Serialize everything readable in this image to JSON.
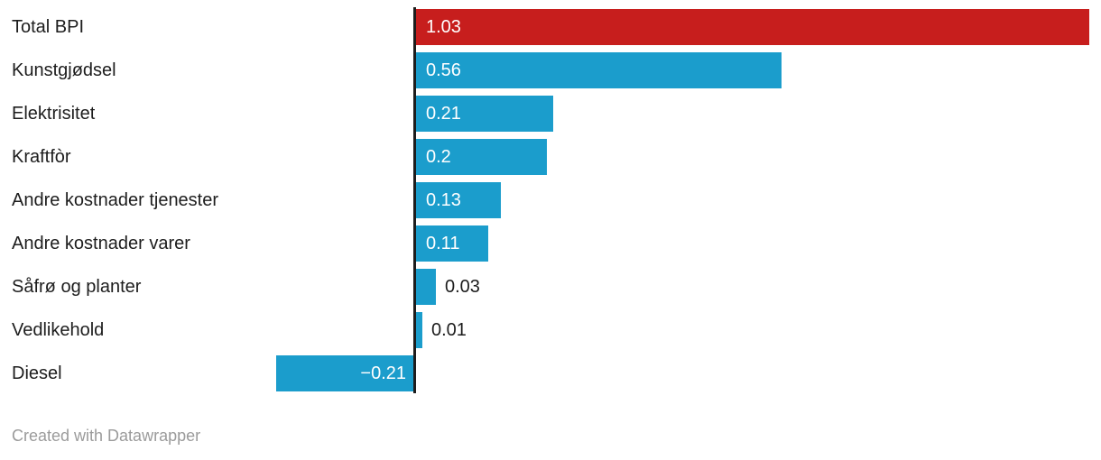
{
  "footer": {
    "credit": "Created with Datawrapper"
  },
  "colors": {
    "highlight_bar": "#c71e1d",
    "bar": "#1b9dcc",
    "axis": "#1d1d1d",
    "category_label": "#1d1d1d",
    "value_inside": "#ffffff",
    "value_outside": "#1d1d1d",
    "credit_text": "#9b9b9b"
  },
  "chart_data": {
    "type": "bar",
    "orientation": "horizontal",
    "title": "",
    "xlabel": "",
    "ylabel": "",
    "grid": false,
    "legend": false,
    "xlim": [
      -0.27,
      1.05
    ],
    "categories": [
      "Total BPI",
      "Kunstgjødsel",
      "Elektrisitet",
      "Kraftfòr",
      "Andre kostnader tjenester",
      "Andre kostnader varer",
      "Såfrø og planter",
      "Vedlikehold",
      "Diesel"
    ],
    "values": [
      1.03,
      0.56,
      0.21,
      0.2,
      0.13,
      0.11,
      0.03,
      0.01,
      -0.21
    ],
    "value_labels": [
      "1.03",
      "0.56",
      "0.21",
      "0.2",
      "0.13",
      "0.11",
      "0.03",
      "0.01",
      "−0.21"
    ],
    "highlight_index": 0
  }
}
